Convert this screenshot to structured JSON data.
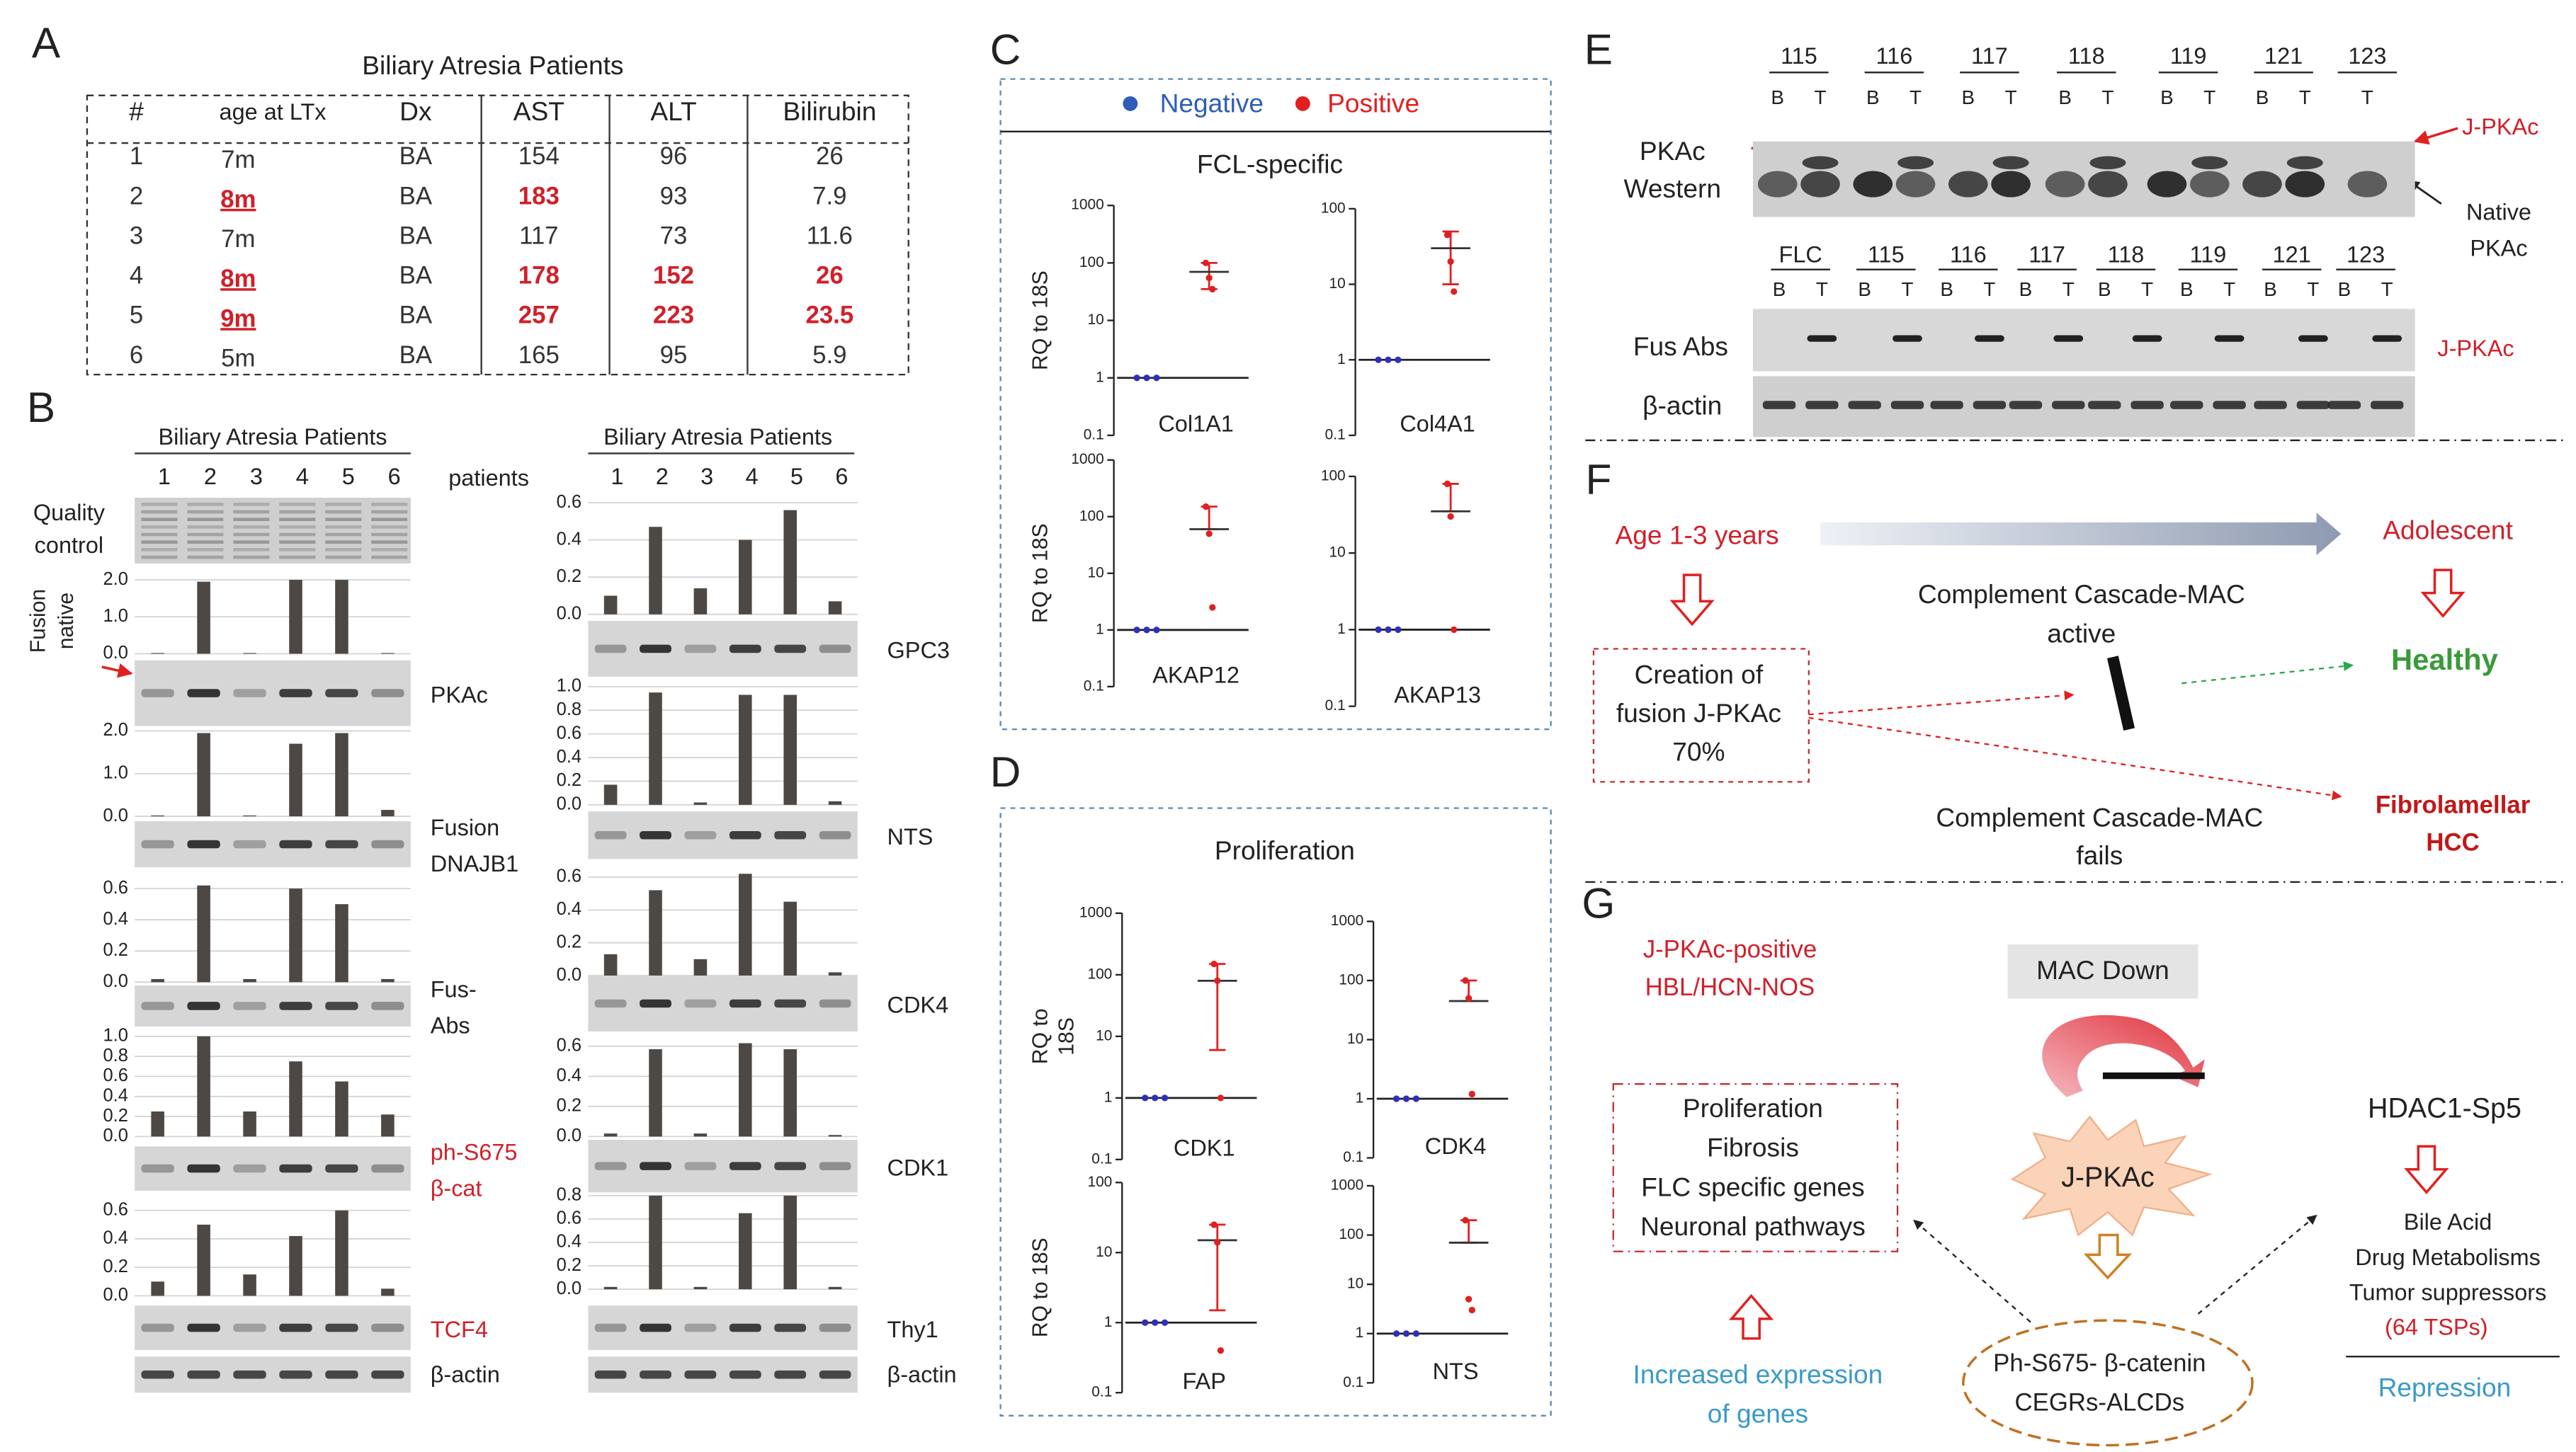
{
  "panels": [
    "A",
    "B",
    "C",
    "D",
    "E",
    "F",
    "G"
  ],
  "panel_a": {
    "title": "Biliary Atresia Patients",
    "header": [
      "#",
      "age at LTx",
      "Dx",
      "AST",
      "ALT",
      "Bilirubin"
    ],
    "rows": [
      [
        "1",
        "7m",
        "BA",
        "154",
        "96",
        "26"
      ],
      [
        "2",
        {
          "text": "8m",
          "color": "#d0202a",
          "underline": true
        },
        "BA",
        {
          "text": "183",
          "color": "#d0202a"
        },
        "93",
        "7.9"
      ],
      [
        "3",
        "7m",
        "BA",
        "117",
        "73",
        "11.6"
      ],
      [
        "4",
        {
          "text": "8m",
          "color": "#d0202a",
          "underline": true
        },
        "BA",
        {
          "text": "178",
          "color": "#d0202a"
        },
        {
          "text": "152",
          "color": "#d0202a"
        },
        {
          "text": "26",
          "color": "#d0202a"
        }
      ],
      [
        "5",
        {
          "text": "9m",
          "color": "#d0202a",
          "underline": true
        },
        "BA",
        {
          "text": "257",
          "color": "#d0202a"
        },
        {
          "text": "223",
          "color": "#d0202a"
        },
        {
          "text": "23.5",
          "color": "#d0202a"
        }
      ],
      [
        "6",
        "5m",
        "BA",
        "165",
        "95",
        "5.9"
      ]
    ]
  },
  "panel_b": {
    "title": "Biliary Atresia Patients",
    "lanes": [
      "1",
      "2",
      "3",
      "4",
      "5",
      "6"
    ],
    "lanes_caption": "patients",
    "quality_control": [
      "Quality",
      "control"
    ],
    "bar_color": "#4d4843",
    "grid": true,
    "left": [
      {
        "type": "bar",
        "ylabel": [
          "Fusion",
          "native"
        ],
        "label": [
          "PKAc"
        ],
        "ylim": [
          0,
          2
        ],
        "yticks": [
          {
            "value": 0,
            "label": "0.0"
          },
          {
            "value": 1,
            "label": "1.0"
          },
          {
            "value": 2,
            "label": "2.0"
          }
        ],
        "values": [
          0.02,
          1.95,
          0.02,
          2.0,
          2.0,
          0.02
        ]
      },
      {
        "type": "bar",
        "label": [
          "Fusion",
          "DNAJB1"
        ],
        "ylim": [
          0,
          2
        ],
        "yticks": [
          {
            "value": 0,
            "label": "0.0"
          },
          {
            "value": 1,
            "label": "1.0"
          },
          {
            "value": 2,
            "label": "2.0"
          }
        ],
        "values": [
          0.02,
          1.95,
          0.02,
          1.7,
          1.95,
          0.15
        ]
      },
      {
        "type": "bar",
        "label": [
          "Fus-",
          "Abs"
        ],
        "ylim": [
          0,
          0.6
        ],
        "yticks": [
          {
            "value": 0,
            "label": "0.0"
          },
          0.2,
          0.4,
          0.6
        ],
        "values": [
          0.02,
          0.62,
          0.02,
          0.6,
          0.5,
          0.02
        ]
      },
      {
        "type": "bar",
        "label": [
          "ph-S675",
          "β-cat"
        ],
        "label_color": "#d0202a",
        "ylim": [
          0,
          1
        ],
        "yticks": [
          {
            "value": 0,
            "label": "0.0"
          },
          0.2,
          0.4,
          0.6,
          0.8,
          {
            "value": 1,
            "label": "1.0"
          }
        ],
        "values": [
          0.25,
          1.0,
          0.25,
          0.75,
          0.55,
          0.22
        ]
      },
      {
        "type": "bar",
        "label": [
          "TCF4"
        ],
        "label_color": "#d0202a",
        "ylim": [
          0,
          0.6
        ],
        "yticks": [
          {
            "value": 0,
            "label": "0.0"
          },
          0.2,
          0.4,
          0.6
        ],
        "values": [
          0.1,
          0.5,
          0.15,
          0.42,
          0.6,
          0.05
        ]
      }
    ],
    "right": [
      {
        "type": "bar",
        "label": [
          "GPC3"
        ],
        "ylim": [
          0,
          0.6
        ],
        "yticks": [
          {
            "value": 0,
            "label": "0.0"
          },
          0.2,
          0.4,
          0.6
        ],
        "values": [
          0.1,
          0.47,
          0.14,
          0.4,
          0.56,
          0.07
        ]
      },
      {
        "type": "bar",
        "label": [
          "NTS"
        ],
        "ylim": [
          0,
          1
        ],
        "yticks": [
          {
            "value": 0,
            "label": "0.0"
          },
          0.2,
          0.4,
          0.6,
          0.8,
          {
            "value": 1,
            "label": "1.0"
          }
        ],
        "values": [
          0.17,
          0.95,
          0.02,
          0.93,
          0.93,
          0.03
        ]
      },
      {
        "type": "bar",
        "label": [
          "CDK4"
        ],
        "ylim": [
          0,
          0.6
        ],
        "yticks": [
          {
            "value": 0,
            "label": "0.0"
          },
          0.2,
          0.4,
          0.6
        ],
        "values": [
          0.13,
          0.52,
          0.1,
          0.62,
          0.45,
          0.02
        ]
      },
      {
        "type": "bar",
        "label": [
          "CDK1"
        ],
        "ylim": [
          0,
          0.6
        ],
        "yticks": [
          {
            "value": 0,
            "label": "0.0"
          },
          0.2,
          0.4,
          0.6
        ],
        "values": [
          0.02,
          0.58,
          0.02,
          0.62,
          0.58,
          0.01
        ]
      },
      {
        "type": "bar",
        "label": [
          "Thy1"
        ],
        "ylim": [
          0,
          0.8
        ],
        "yticks": [
          {
            "value": 0,
            "label": "0.0"
          },
          0.2,
          0.4,
          0.6,
          0.8
        ],
        "values": [
          0.02,
          0.8,
          0.02,
          0.65,
          0.8,
          0.02
        ]
      }
    ],
    "actin": "β-actin"
  },
  "panel_c": {
    "legend": [
      {
        "name": "Negative",
        "color": "#2f5db8"
      },
      {
        "name": "Positive",
        "color": "#e02020"
      }
    ],
    "subtitle": "FCL-specific",
    "charts": [
      {
        "type": "scatter",
        "yscale": "log",
        "ylabel": [
          "RQ to 18S"
        ],
        "xlabel": "Col1A1",
        "ylim": [
          0.1,
          1000
        ],
        "yticks": [
          0.1,
          1,
          10,
          100,
          1000
        ],
        "series": [
          {
            "color": "#2f2fb8",
            "values": [
              1,
              1,
              1
            ],
            "mean": 1
          },
          {
            "color": "#e02020",
            "values": [
              100,
              55,
              35
            ],
            "mean": 70,
            "range": [
              35,
              100
            ]
          }
        ]
      },
      {
        "type": "scatter",
        "yscale": "log",
        "xlabel": "Col4A1",
        "ylim": [
          0.1,
          100
        ],
        "yticks": [
          0.1,
          1,
          10,
          100
        ],
        "series": [
          {
            "color": "#2f2fb8",
            "values": [
              1,
              1,
              1
            ],
            "mean": 1
          },
          {
            "color": "#e02020",
            "values": [
              45,
              20,
              8
            ],
            "mean": 30,
            "range": [
              10,
              50
            ]
          }
        ]
      },
      {
        "type": "scatter",
        "yscale": "log",
        "ylabel": [
          "RQ to 18S"
        ],
        "xlabel": "AKAP12",
        "ylim": [
          0.1,
          1000
        ],
        "yticks": [
          0.1,
          1,
          10,
          100,
          1000
        ],
        "series": [
          {
            "color": "#2f2fb8",
            "values": [
              1,
              1,
              1
            ],
            "mean": 1
          },
          {
            "color": "#e02020",
            "values": [
              150,
              50,
              2.5
            ],
            "mean": 60,
            "range": [
              60,
              150
            ]
          }
        ]
      },
      {
        "type": "scatter",
        "yscale": "log",
        "xlabel": "AKAP13",
        "ylim": [
          0.1,
          100
        ],
        "yticks": [
          0.1,
          1,
          10,
          100
        ],
        "series": [
          {
            "color": "#2f2fb8",
            "values": [
              1,
              1,
              1
            ],
            "mean": 1
          },
          {
            "color": "#e02020",
            "values": [
              80,
              30,
              1
            ],
            "mean": 35,
            "range": [
              35,
              80
            ]
          }
        ]
      }
    ]
  },
  "panel_d": {
    "subtitle": "Proliferation",
    "charts": [
      {
        "type": "scatter",
        "yscale": "log",
        "ylabel": [
          "RQ to",
          "18S"
        ],
        "xlabel": "CDK1",
        "ylim": [
          0.1,
          1000
        ],
        "yticks": [
          0.1,
          1,
          10,
          100,
          1000
        ],
        "series": [
          {
            "color": "#2f2fb8",
            "values": [
              1,
              1,
              1
            ],
            "mean": 1
          },
          {
            "color": "#e02020",
            "values": [
              150,
              80,
              1
            ],
            "mean": 80,
            "range": [
              6,
              150
            ]
          }
        ]
      },
      {
        "type": "scatter",
        "yscale": "log",
        "xlabel": "CDK4",
        "ylim": [
          0.1,
          1000
        ],
        "yticks": [
          0.1,
          1,
          10,
          100,
          1000
        ],
        "series": [
          {
            "color": "#2f2fb8",
            "values": [
              1,
              1,
              1
            ],
            "mean": 1
          },
          {
            "color": "#e02020",
            "values": [
              100,
              50,
              1.2
            ],
            "mean": 45,
            "range": [
              45,
              100
            ]
          }
        ]
      },
      {
        "type": "scatter",
        "yscale": "log",
        "ylabel": [
          "RQ to 18S"
        ],
        "xlabel": "FAP",
        "ylim": [
          0.1,
          100
        ],
        "yticks": [
          0.1,
          1,
          10,
          100
        ],
        "series": [
          {
            "color": "#2f2fb8",
            "values": [
              1,
              1,
              1
            ],
            "mean": 1
          },
          {
            "color": "#e02020",
            "values": [
              25,
              14,
              0.4
            ],
            "mean": 15,
            "range": [
              1.5,
              25
            ]
          }
        ]
      },
      {
        "type": "scatter",
        "yscale": "log",
        "xlabel": "NTS",
        "ylim": [
          0.1,
          1000
        ],
        "yticks": [
          0.1,
          1,
          10,
          100,
          1000
        ],
        "series": [
          {
            "color": "#2f2fb8",
            "values": [
              1,
              1,
              1
            ],
            "mean": 1
          },
          {
            "color": "#e02020",
            "values": [
              200,
              5,
              3
            ],
            "mean": 70,
            "range": [
              70,
              200
            ]
          }
        ]
      }
    ]
  },
  "panel_e": {
    "top_groups": [
      {
        "label": "115",
        "lanes": [
          "B",
          "T"
        ]
      },
      {
        "label": "116",
        "lanes": [
          "B",
          "T"
        ]
      },
      {
        "label": "117",
        "lanes": [
          "B",
          "T"
        ]
      },
      {
        "label": "118",
        "lanes": [
          "B",
          "T"
        ]
      },
      {
        "label": "119",
        "lanes": [
          "B",
          "T"
        ]
      },
      {
        "label": "121",
        "lanes": [
          "B",
          "T"
        ]
      },
      {
        "label": "123",
        "lanes": [
          "T"
        ]
      }
    ],
    "western": [
      "PKAc",
      "Western"
    ],
    "j_pkac": "J-PKAc",
    "native": [
      "Native",
      "PKAc"
    ],
    "bottom_groups": [
      {
        "label": "FLC",
        "lanes": [
          "B",
          "T"
        ]
      },
      {
        "label": "115",
        "lanes": [
          "B",
          "T"
        ]
      },
      {
        "label": "116",
        "lanes": [
          "B",
          "T"
        ]
      },
      {
        "label": "117",
        "lanes": [
          "B",
          "T"
        ]
      },
      {
        "label": "118",
        "lanes": [
          "B",
          "T"
        ]
      },
      {
        "label": "119",
        "lanes": [
          "B",
          "T"
        ]
      },
      {
        "label": "121",
        "lanes": [
          "B",
          "T"
        ]
      },
      {
        "label": "123",
        "lanes": [
          "B",
          "T"
        ]
      }
    ],
    "fus_abs": "Fus Abs",
    "j_pkac_bottom": "J-PKAc",
    "actin": "β-actin"
  },
  "panel_f": {
    "start": "Age 1-3 years",
    "end": "Adolescent",
    "creation": [
      "Creation of",
      "fusion J-PKAc",
      "70%"
    ],
    "active": [
      "Complement Cascade-MAC",
      "active"
    ],
    "healthy": "Healthy",
    "fails": [
      "Complement Cascade-MAC",
      "fails"
    ],
    "outcome": [
      "Fibrolamellar",
      "HCC"
    ]
  },
  "panel_g": {
    "tumor": [
      "J-PKAc-positive",
      "HBL/HCN-NOS"
    ],
    "mac": "MAC Down",
    "kinase": "J-PKAc",
    "up_genes": [
      "Proliferation",
      "Fibrosis",
      "FLC specific genes",
      "Neuronal pathways"
    ],
    "increased": [
      "Increased expression",
      "of genes"
    ],
    "complex": [
      "Ph-S675- β-catenin",
      "CEGRs-ALCDs"
    ],
    "repressor": "HDAC1-Sp5",
    "down_genes": [
      "Bile Acid",
      "Drug Metabolisms",
      "Tumor suppressors"
    ],
    "tsp": "(64 TSPs)",
    "repression": "Repression"
  }
}
